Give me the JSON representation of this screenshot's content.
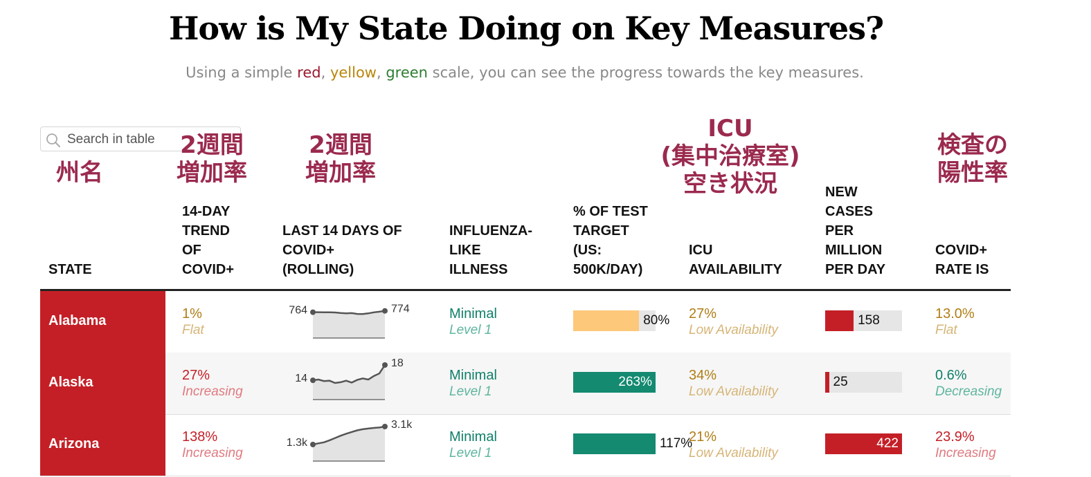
{
  "header": {
    "title": "How is My State Doing on Key Measures?",
    "subtitle_prefix": "Using a simple ",
    "subtitle_red": "red",
    "subtitle_sep1": ", ",
    "subtitle_yellow": "yellow",
    "subtitle_sep2": ", ",
    "subtitle_green": "green",
    "subtitle_suffix": " scale, you can see the progress towards the key measures."
  },
  "search": {
    "placeholder": "Search in table"
  },
  "annotations": {
    "state": "州名",
    "trend": "2週間\n増加率",
    "last14": "2週間\n増加率",
    "icu": "ICU\n(集中治療室)\n空き状況",
    "positivity": "検査の\n陽性率"
  },
  "columns": {
    "state": "STATE",
    "trend": "14-DAY\nTREND\nOF\nCOVID+",
    "last14": "LAST 14 DAYS OF\nCOVID+\n(ROLLING)",
    "ili": "INFLUENZA-\nLIKE\nILLNESS",
    "test": "% OF TEST\nTARGET\n(US:\n500K/DAY)",
    "icu": "ICU\nAVAILABILITY",
    "cases": "NEW\nCASES\nPER\nMILLION\nPER DAY",
    "rate": "COVID+\nRATE IS"
  },
  "colors": {
    "red": "#c41f26",
    "red_text": "#c41f26",
    "red_light": "#e07a80",
    "yellow_text": "#b07d15",
    "yellow_light": "#d6b577",
    "yellow_fill": "#fdc87a",
    "green_text": "#10806a",
    "green_light": "#5fb59f",
    "green_fill": "#148a70"
  },
  "rows": [
    {
      "state": "Alabama",
      "trend_value": "1%",
      "trend_label": "Flat",
      "trend_status": "yellow",
      "spark_start": "764",
      "spark_end": "774",
      "spark_values": [
        764,
        764,
        763,
        763,
        762,
        758,
        755,
        757,
        751,
        750,
        755,
        763,
        768,
        774
      ],
      "ili_value": "Minimal",
      "ili_level": "Level 1",
      "test_label": "80%",
      "test_pct": 80,
      "test_status": "yellow",
      "icu_value": "27%",
      "icu_label": "Low Availability",
      "cases_value": "158",
      "cases_max_fraction": 0.37,
      "rate_value": "13.0%",
      "rate_label": "Flat",
      "rate_status": "yellow"
    },
    {
      "state": "Alaska",
      "trend_value": "27%",
      "trend_label": "Increasing",
      "trend_status": "red",
      "spark_start": "14",
      "spark_end": "18",
      "spark_values": [
        14,
        14.2,
        13.8,
        13.9,
        13.3,
        13.5,
        13.9,
        13.4,
        14.1,
        14.5,
        14.2,
        15.1,
        15.8,
        18
      ],
      "ili_value": "Minimal",
      "ili_level": "Level 1",
      "test_label": "263%",
      "test_pct": 263,
      "test_status": "green",
      "icu_value": "34%",
      "icu_label": "Low Availability",
      "cases_value": "25",
      "cases_max_fraction": 0.05,
      "rate_value": "0.6%",
      "rate_label": "Decreasing",
      "rate_status": "green"
    },
    {
      "state": "Arizona",
      "trend_value": "138%",
      "trend_label": "Increasing",
      "trend_status": "red",
      "spark_start": "1.3k",
      "spark_end": "3.1k",
      "spark_values": [
        1300,
        1420,
        1520,
        1720,
        1950,
        2180,
        2380,
        2550,
        2720,
        2830,
        2900,
        2960,
        3000,
        3100
      ],
      "ili_value": "Minimal",
      "ili_level": "Level 1",
      "test_label": "117%",
      "test_pct": 117,
      "test_status": "green",
      "icu_value": "21%",
      "icu_label": "Low Availability",
      "cases_value": "422",
      "cases_max_fraction": 1.0,
      "rate_value": "23.9%",
      "rate_label": "Increasing",
      "rate_status": "red"
    }
  ]
}
